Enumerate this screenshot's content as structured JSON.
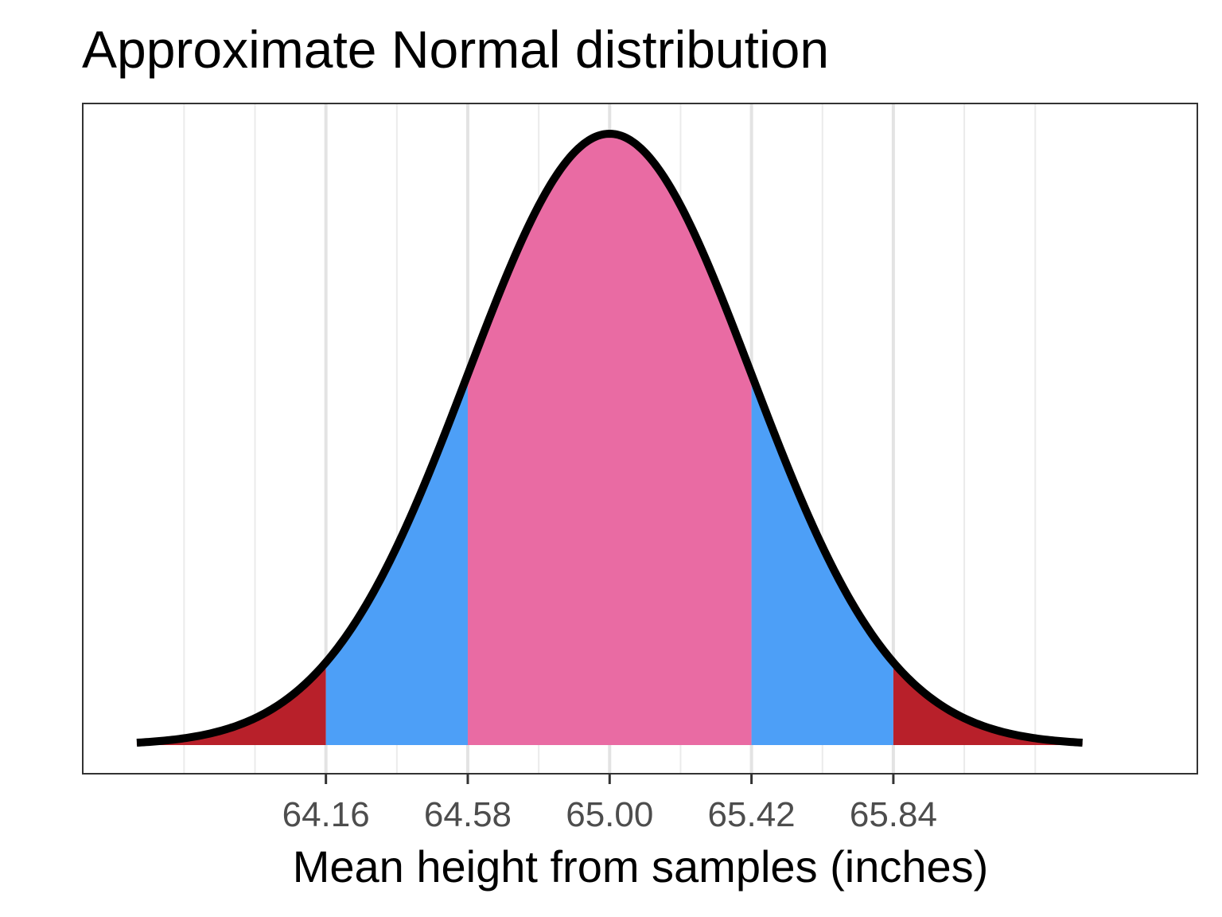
{
  "chart_data": {
    "type": "area",
    "title": "Approximate Normal distribution",
    "xlabel": "Mean height from samples (inches)",
    "ylabel": "",
    "mean": 65.0,
    "sd": 0.42,
    "xlim": [
      63.44,
      66.74
    ],
    "x_curve_range": [
      63.6,
      66.4
    ],
    "ticks": [
      64.16,
      64.58,
      65.0,
      65.42,
      65.84
    ],
    "tick_labels": [
      "64.16",
      "64.58",
      "65.00",
      "65.42",
      "65.84"
    ],
    "minor_gridlines": [
      63.74,
      63.95,
      64.37,
      64.79,
      65.21,
      65.63,
      66.05,
      66.26
    ],
    "grid": true,
    "y_axis_shown": false,
    "curve_color": "#000000",
    "regions": [
      {
        "from": 63.6,
        "to": 64.16,
        "color": "#b8202a"
      },
      {
        "from": 64.16,
        "to": 64.58,
        "color": "#4d9ff7"
      },
      {
        "from": 64.58,
        "to": 65.42,
        "color": "#e96ba3"
      },
      {
        "from": 65.42,
        "to": 65.84,
        "color": "#4d9ff7"
      },
      {
        "from": 65.84,
        "to": 66.4,
        "color": "#b8202a"
      }
    ]
  }
}
